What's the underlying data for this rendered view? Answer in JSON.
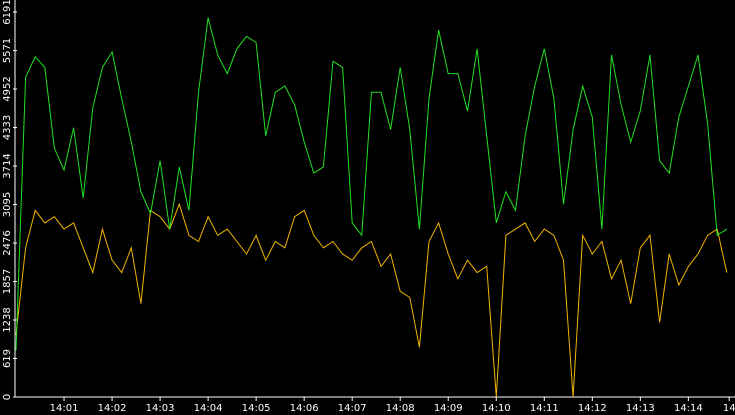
{
  "chart_data": {
    "type": "line",
    "x": [
      0,
      0.2,
      0.4,
      0.6,
      0.8,
      1,
      1.2,
      1.4,
      1.6,
      1.8,
      2,
      2.2,
      2.4,
      2.6,
      2.8,
      3,
      3.2,
      3.4,
      3.6,
      3.8,
      4,
      4.2,
      4.4,
      4.6,
      4.8,
      5,
      5.2,
      5.4,
      5.6,
      5.8,
      6,
      6.2,
      6.4,
      6.6,
      6.8,
      7,
      7.2,
      7.4,
      7.6,
      7.8,
      8,
      8.2,
      8.4,
      8.6,
      8.8,
      9,
      9.2,
      9.4,
      9.6,
      9.8,
      10,
      10.2,
      10.4,
      10.6,
      10.8,
      11,
      11.2,
      11.4,
      11.6,
      11.8,
      12,
      12.2,
      12.4,
      12.6,
      12.8,
      13,
      13.2,
      13.4,
      13.6,
      13.8,
      14,
      14.2,
      14.4,
      14.6,
      14.8
    ],
    "series": [
      {
        "color": "#22e022",
        "values": [
          750,
          5140,
          5470,
          5300,
          4000,
          3650,
          4330,
          3200,
          4650,
          5300,
          5550,
          4800,
          4100,
          3300,
          2950,
          3800,
          2700,
          3700,
          3000,
          4900,
          6100,
          5500,
          5200,
          5600,
          5800,
          5700,
          4200,
          4900,
          5000,
          4700,
          4100,
          3600,
          3700,
          5400,
          5300,
          2800,
          2600,
          4900,
          4900,
          4300,
          5300,
          4300,
          2700,
          4800,
          5900,
          5200,
          5200,
          4600,
          5600,
          4200,
          2800,
          3300,
          3000,
          4200,
          5000,
          5600,
          4800,
          3100,
          4300,
          5000,
          4500,
          2700,
          5500,
          4700,
          4100,
          4600,
          5500,
          3800,
          3600,
          4500,
          5000,
          5500,
          4400,
          2600,
          2700
        ]
      },
      {
        "color": "#f0b400",
        "values": [
          1000,
          2400,
          3000,
          2800,
          2900,
          2700,
          2800,
          2400,
          2000,
          2700,
          2200,
          2000,
          2400,
          1500,
          3000,
          2900,
          2700,
          3100,
          2600,
          2500,
          2900,
          2600,
          2700,
          2500,
          2300,
          2600,
          2200,
          2500,
          2400,
          2900,
          3000,
          2600,
          2400,
          2500,
          2300,
          2200,
          2400,
          2500,
          2100,
          2300,
          1700,
          1600,
          800,
          2500,
          2800,
          2300,
          1900,
          2200,
          2000,
          2100,
          0,
          2600,
          2700,
          2800,
          2500,
          2700,
          2600,
          2200,
          0,
          2600,
          2300,
          2500,
          1900,
          2200,
          1500,
          2400,
          2600,
          1200,
          2300,
          1800,
          2100,
          2300,
          2600,
          2700,
          2000
        ]
      }
    ],
    "xlim": [
      0,
      14.95
    ],
    "xticks": [
      {
        "value": 1,
        "label": "14:01"
      },
      {
        "value": 2,
        "label": "14:02"
      },
      {
        "value": 3,
        "label": "14:03"
      },
      {
        "value": 4,
        "label": "14:04"
      },
      {
        "value": 5,
        "label": "14:05"
      },
      {
        "value": 6,
        "label": "14:06"
      },
      {
        "value": 7,
        "label": "14:07"
      },
      {
        "value": 8,
        "label": "14:08"
      },
      {
        "value": 9,
        "label": "14:09"
      },
      {
        "value": 10,
        "label": "14:10"
      },
      {
        "value": 11,
        "label": "14:11"
      },
      {
        "value": 12,
        "label": "14:12"
      },
      {
        "value": 13,
        "label": "14:13"
      },
      {
        "value": 14,
        "label": "14:14"
      },
      {
        "value": 14.85,
        "label": "14"
      }
    ],
    "ylim": [
      0,
      6191
    ],
    "yticks": [
      0,
      619,
      1238,
      1857,
      2476,
      3095,
      3714,
      4333,
      4952,
      5571,
      6191
    ]
  }
}
